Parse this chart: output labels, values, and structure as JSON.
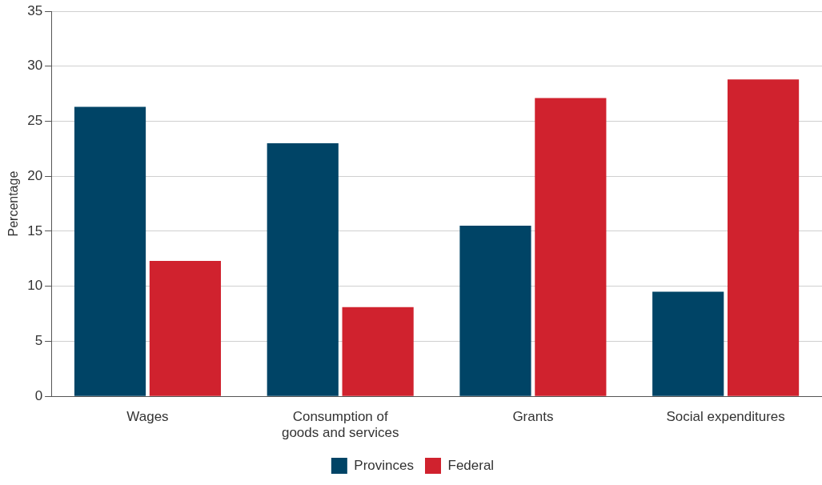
{
  "chart_data": {
    "type": "bar",
    "ylabel": "Percentage",
    "categories": [
      "Wages",
      "Consumption of goods and services",
      "Grants",
      "Social expenditures"
    ],
    "series": [
      {
        "name": "Provinces",
        "color": "#004466",
        "values": [
          26.3,
          23.0,
          15.5,
          9.5
        ]
      },
      {
        "name": "Federal",
        "color": "#d0222e",
        "values": [
          12.3,
          8.1,
          27.1,
          28.8
        ]
      }
    ],
    "ylim": [
      0,
      35
    ],
    "yticks": [
      0,
      5,
      10,
      15,
      20,
      25,
      30,
      35
    ],
    "grid": "y",
    "legend": "bottom"
  }
}
